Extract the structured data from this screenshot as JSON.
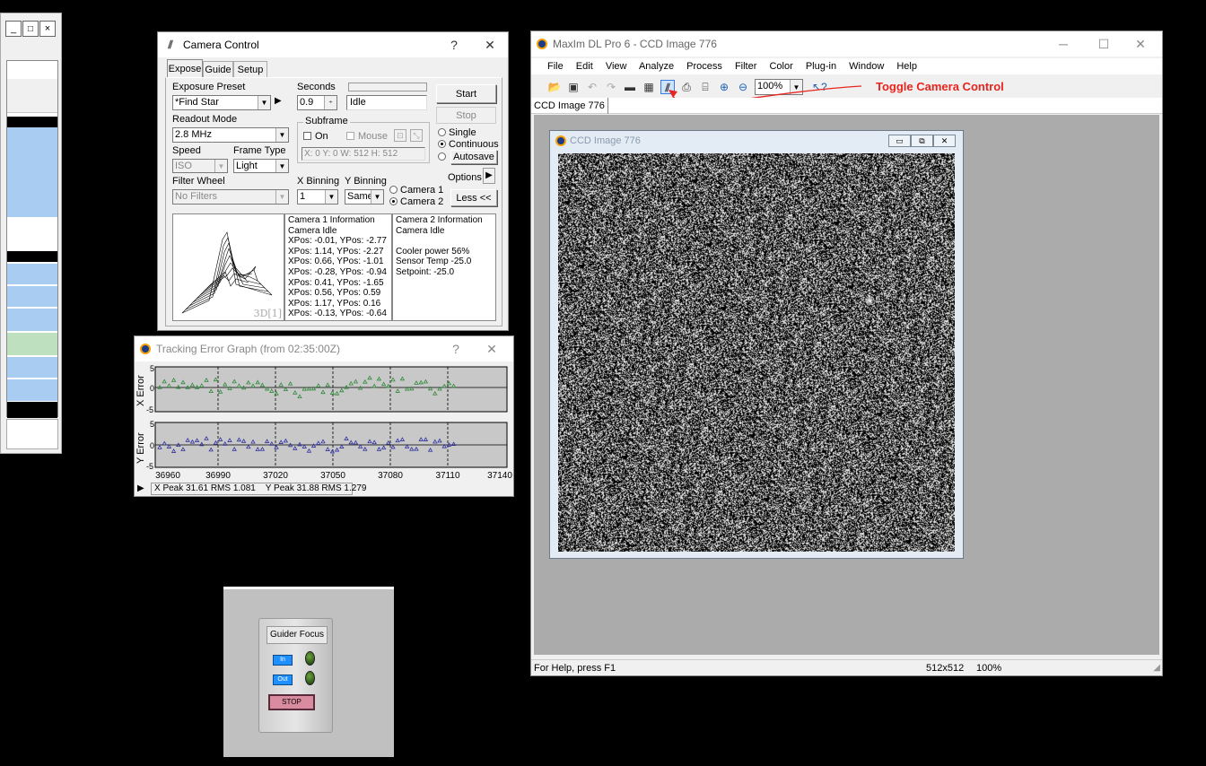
{
  "left_panel": {
    "controls": [
      "_",
      "□",
      "×"
    ]
  },
  "camera_control": {
    "title": "Camera Control",
    "help": "?",
    "close": "✕",
    "tabs": [
      "Expose",
      "Guide",
      "Setup"
    ],
    "exposure_preset_label": "Exposure Preset",
    "exposure_preset_value": "*Find Star",
    "seconds_label": "Seconds",
    "seconds_value": "0.9",
    "status": "Idle",
    "start": "Start",
    "stop": "Stop",
    "readout_label": "Readout Mode",
    "readout_value": "2.8 MHz",
    "subframe_label": "Subframe",
    "on_label": "On",
    "mouse_label": "Mouse",
    "subframe_coords": "X:   0 Y:   0 W: 512 H: 512",
    "speed_label": "Speed",
    "speed_value": "ISO",
    "frame_type_label": "Frame Type",
    "frame_type_value": "Light",
    "single": "Single",
    "continuous": "Continuous",
    "autosave": "Autosave",
    "options": "Options",
    "filter_wheel_label": "Filter Wheel",
    "filter_value": "No Filters",
    "x_binning_label": "X Binning",
    "y_binning_label": "Y Binning",
    "x_binning_value": "1",
    "y_binning_value": "Same",
    "camera1": "Camera 1",
    "camera2": "Camera 2",
    "less": "Less <<",
    "view_label": "3D[1]",
    "cam1_info": [
      "Camera 1 Information",
      "Camera Idle",
      "XPos: -0.01, YPos: -2.77",
      "XPos: 1.14, YPos: -2.27",
      "XPos: 0.66, YPos: -1.01",
      "XPos: -0.28, YPos: -0.94",
      "XPos: 0.41, YPos: -1.65",
      "XPos: 0.56, YPos: 0.59",
      "XPos: 1.17, YPos: 0.16",
      "XPos: -0.13, YPos: -0.64"
    ],
    "cam2_info": [
      "Camera 2 Information",
      "Camera Idle",
      "",
      "Cooler power 56%",
      "Sensor Temp -25.0",
      "Setpoint: -25.0"
    ]
  },
  "tracking": {
    "title": "Tracking Error Graph (from 02:35:00Z)",
    "help": "?",
    "close": "✕",
    "x_axis_label": "X Error",
    "y_axis_label": "Y Error",
    "x_ticks": [
      "36960",
      "36990",
      "37020",
      "37050",
      "37080",
      "37110",
      "37140"
    ],
    "y_ticks_top": [
      "5",
      "0",
      "-5"
    ],
    "y_ticks_bottom": [
      "5",
      "0",
      "-5"
    ],
    "stats": "X Peak 31.61 RMS 1.081    Y Peak 31.88 RMS 1.279",
    "colors": {
      "x_series": "#2e8b3a",
      "y_series": "#3030a0"
    }
  },
  "maxim": {
    "title": "MaxIm DL Pro 6 - CCD Image 776",
    "menu": [
      "File",
      "Edit",
      "View",
      "Analyze",
      "Process",
      "Filter",
      "Color",
      "Plug-in",
      "Window",
      "Help"
    ],
    "zoom": "100%",
    "annotation": "Toggle Camera Control",
    "annotation_color": "#e8251e",
    "doc_tab": "CCD Image 776",
    "child_title": "CCD Image 776",
    "status_help": "For Help, press F1",
    "status_size": "512x512",
    "status_zoom": "100%"
  },
  "guider_focus": {
    "title": "Guider Focus",
    "in": "In",
    "out": "Out",
    "stop": "STOP"
  }
}
